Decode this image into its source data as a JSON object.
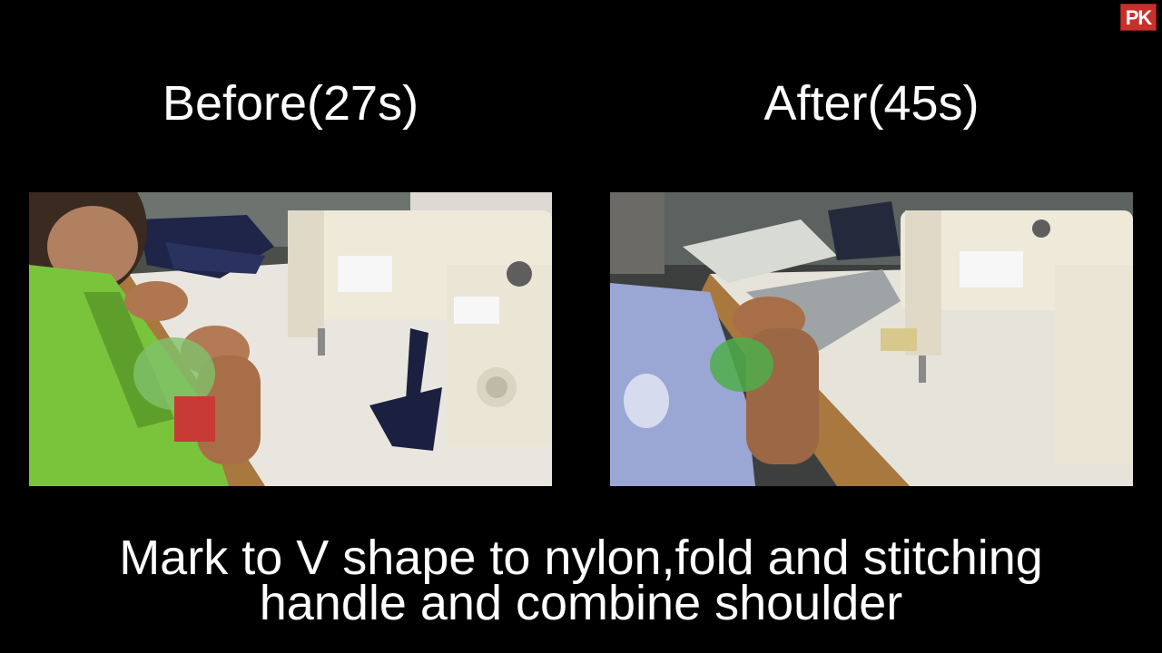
{
  "logo": {
    "text": "PK"
  },
  "labels": {
    "before": "Before(27s)",
    "after": "After(45s)"
  },
  "caption": {
    "line1": "Mark to V shape to nylon,fold and stitching",
    "line2": "handle and combine shoulder"
  }
}
